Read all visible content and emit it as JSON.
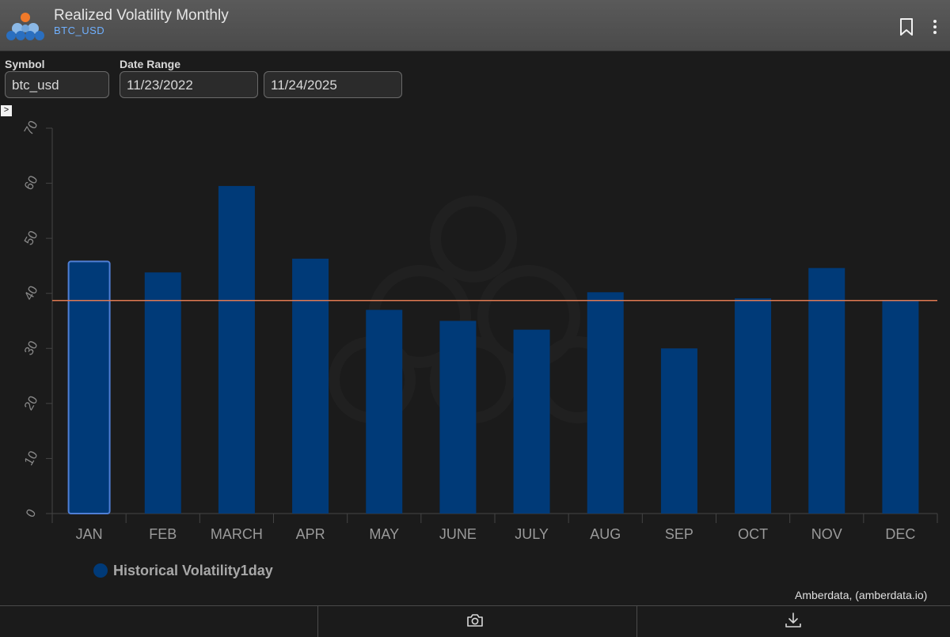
{
  "header": {
    "title": "Realized Volatility Monthly",
    "subtitle": "BTC_USD",
    "icons": [
      "logo",
      "bookmark-icon",
      "more-vertical-icon"
    ]
  },
  "filters": {
    "symbol_label": "Symbol",
    "symbol_value": "btc_usd",
    "date_range_label": "Date Range",
    "start_date": "11/23/2022",
    "end_date": "11/24/2025",
    "expand_glyph": ">"
  },
  "chart_data": {
    "type": "bar",
    "categories": [
      "JAN",
      "FEB",
      "MARCH",
      "APR",
      "MAY",
      "JUNE",
      "JULY",
      "AUG",
      "SEP",
      "OCT",
      "NOV",
      "DEC"
    ],
    "series": [
      {
        "name": "Historical Volatility1day",
        "values": [
          45.8,
          43.8,
          59.5,
          46.3,
          37.0,
          35.0,
          33.4,
          40.2,
          30.0,
          39.1,
          44.6,
          38.8
        ],
        "color": "#003a78"
      }
    ],
    "reference_line": {
      "value": 38.7,
      "color": "#e07a52"
    },
    "highlighted_category": "JAN",
    "yticks": [
      0,
      10,
      20,
      30,
      40,
      50,
      60,
      70
    ],
    "ylim": [
      0,
      70
    ],
    "grid": false,
    "legend_position": "bottom-left"
  },
  "legend": {
    "label": "Historical Volatility1day"
  },
  "credit": "Amberdata, (amberdata.io)",
  "footer": {
    "icons": [
      "camera-icon",
      "download-icon"
    ]
  },
  "colors": {
    "bar": "#003a78",
    "accent": "#6fb0ff",
    "reference": "#e07a52"
  }
}
